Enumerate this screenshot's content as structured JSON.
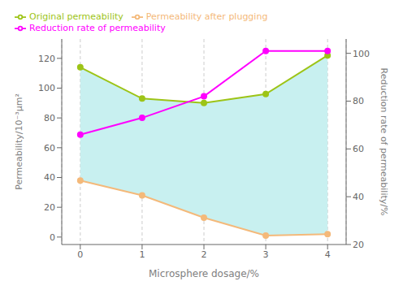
{
  "chart_data": {
    "type": "line",
    "xlabel": "Microsphere dosage/%",
    "ylabel": "Permeability/10⁻³μm²",
    "y2label": "Reduction rate of permeability/%",
    "x": [
      0,
      1,
      2,
      3,
      4
    ],
    "xlim": [
      -0.3,
      4.3
    ],
    "xticks": [
      0,
      1,
      2,
      3,
      4
    ],
    "ylim": [
      -5,
      133
    ],
    "yticks": [
      0,
      20,
      40,
      60,
      80,
      100,
      120
    ],
    "y2lim": [
      20,
      106
    ],
    "y2ticks": [
      20,
      40,
      60,
      80,
      100
    ],
    "grid": "x",
    "legend": "upper left",
    "color": "#c8f0f0",
    "series": [
      {
        "name": "Original permeability",
        "color": "#9dc417",
        "marker": "circle",
        "line_style": "solid",
        "values": [
          114,
          93,
          90,
          96,
          122
        ]
      },
      {
        "name": "Permeability after plugging",
        "color": "#f4b97a",
        "marker": "circle",
        "line_style": "solid",
        "values": [
          38,
          28,
          13,
          1,
          2
        ]
      },
      {
        "name": "Reduction rate of permeability",
        "color": "#ff00ff",
        "marker": "circle",
        "line_style": "solid",
        "axis": "y2",
        "values": [
          66,
          73,
          82,
          101,
          101
        ]
      }
    ]
  }
}
